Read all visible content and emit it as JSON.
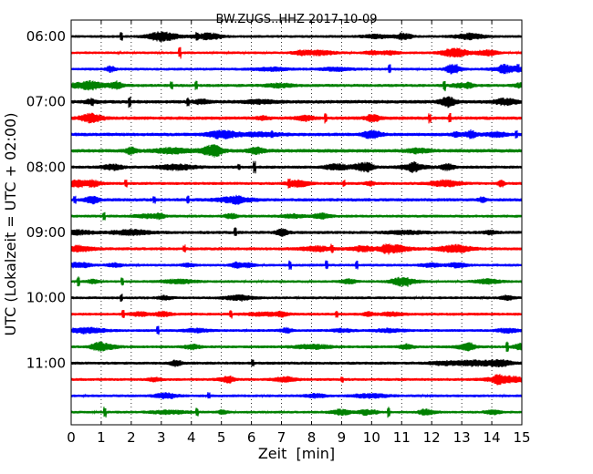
{
  "chart_data": {
    "type": "line",
    "title": "BW.ZUGS..HHZ 2017-10-09",
    "xlabel": "Zeit  [min]",
    "ylabel": "UTC (Lokalzeit = UTC + 02:00)",
    "xlim": [
      0,
      15
    ],
    "x_ticks": [
      "0",
      "1",
      "2",
      "3",
      "4",
      "5",
      "6",
      "7",
      "8",
      "9",
      "10",
      "11",
      "12",
      "13",
      "14",
      "15"
    ],
    "y_tick_labels": [
      "06:00",
      "07:00",
      "08:00",
      "09:00",
      "10:00",
      "11:00"
    ],
    "grid": "vertical dotted",
    "series_colors": [
      "#000000",
      "#ff0000",
      "#0000ff",
      "#008000"
    ],
    "traces_start": "06:00",
    "trace_minutes": 15,
    "trace_count": 24,
    "trace_start_times": [
      "06:00",
      "06:15",
      "06:30",
      "06:45",
      "07:00",
      "07:15",
      "07:30",
      "07:45",
      "08:00",
      "08:15",
      "08:30",
      "08:45",
      "09:00",
      "09:15",
      "09:30",
      "09:45",
      "10:00",
      "10:15",
      "10:30",
      "10:45",
      "11:00",
      "11:15",
      "11:30",
      "11:45"
    ],
    "trace_activity_level": [
      0.4,
      0.35,
      0.4,
      0.55,
      0.75,
      0.7,
      0.7,
      0.8,
      0.55,
      0.5,
      0.65,
      0.45,
      0.6,
      0.55,
      0.4,
      0.35,
      0.4,
      0.45,
      0.4,
      0.45,
      0.5,
      0.45,
      0.4,
      0.35
    ]
  }
}
